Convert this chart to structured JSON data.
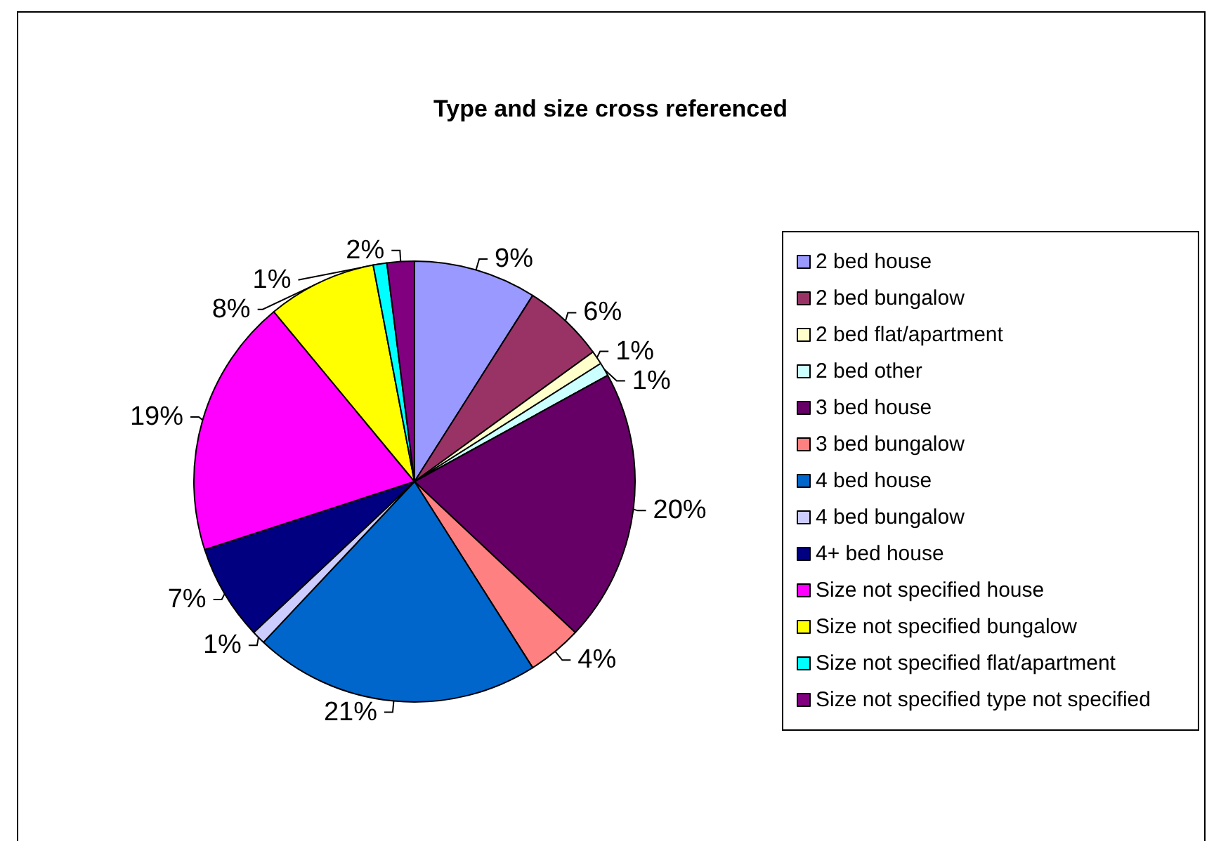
{
  "chart_data": {
    "type": "pie",
    "title": "Type and size cross referenced",
    "categories": [
      "2 bed house",
      "2 bed bungalow",
      "2 bed flat/apartment",
      "2 bed other",
      "3 bed house",
      "3 bed bungalow",
      "4 bed house",
      "4 bed bungalow",
      "4+ bed house",
      "Size not specified house",
      "Size not specified bungalow",
      "Size not specified flat/apartment",
      "Size not specified type not specified"
    ],
    "values": [
      9,
      6,
      1,
      1,
      20,
      4,
      21,
      1,
      7,
      19,
      8,
      1,
      2
    ],
    "value_labels": [
      "9%",
      "6%",
      "1%",
      "1%",
      "20%",
      "4%",
      "21%",
      "1%",
      "7%",
      "19%",
      "8%",
      "1%",
      "2%"
    ],
    "colors": [
      "#9999ff",
      "#993366",
      "#ffffcc",
      "#ccffff",
      "#660066",
      "#ff8080",
      "#0066cc",
      "#ccccff",
      "#000080",
      "#ff00ff",
      "#ffff00",
      "#00ffff",
      "#800080"
    ],
    "legend": "right"
  }
}
